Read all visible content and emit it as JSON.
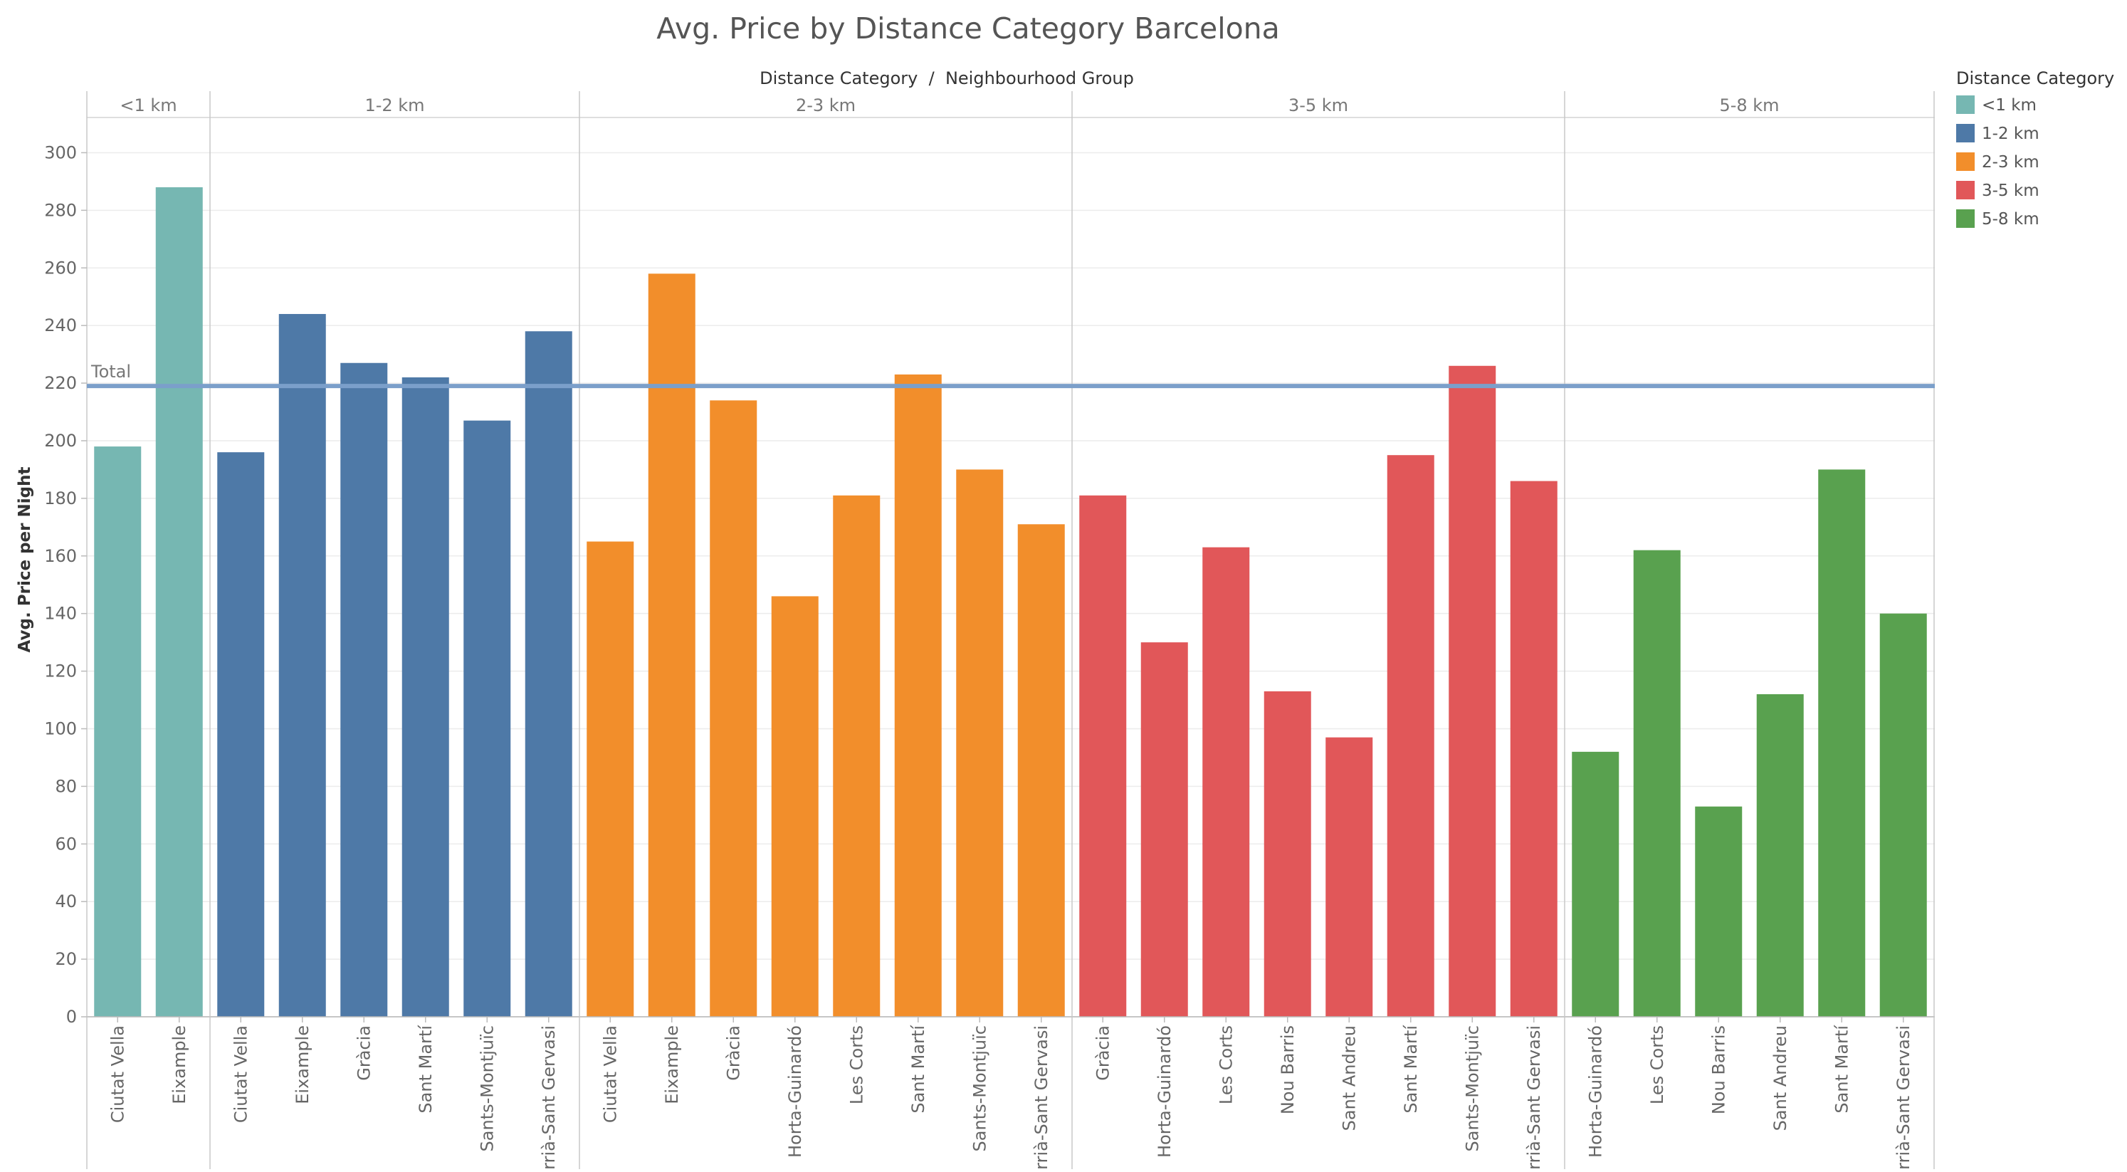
{
  "chart_data": {
    "type": "bar",
    "title": "Avg. Price by Distance Category Barcelona",
    "column_header": "Distance Category  /  Neighbourhood Group",
    "ylabel": "Avg. Price per Night",
    "ylim": [
      0,
      310
    ],
    "yticks": [
      0,
      20,
      40,
      60,
      80,
      100,
      120,
      140,
      160,
      180,
      200,
      220,
      240,
      260,
      280,
      300
    ],
    "grid": true,
    "reference_line": {
      "label": "Total",
      "value": 219,
      "color": "#7b9fca"
    },
    "legend": {
      "title": "Distance Category",
      "position": "right"
    },
    "groups": [
      {
        "name": "<1 km",
        "color": "#76b7b2",
        "categories": [
          "Ciutat Vella",
          "Eixample"
        ],
        "values": [
          198,
          288
        ]
      },
      {
        "name": "1-2 km",
        "color": "#4e79a7",
        "categories": [
          "Ciutat Vella",
          "Eixample",
          "Gràcia",
          "Sant Martí",
          "Sants-Montjuïc",
          "Sarrià-Sant Gervasi"
        ],
        "values": [
          196,
          244,
          227,
          222,
          207,
          238
        ]
      },
      {
        "name": "2-3 km",
        "color": "#f28e2b",
        "categories": [
          "Ciutat Vella",
          "Eixample",
          "Gràcia",
          "Horta-Guinardó",
          "Les Corts",
          "Sant Martí",
          "Sants-Montjuïc",
          "Sarrià-Sant Gervasi"
        ],
        "values": [
          165,
          258,
          214,
          146,
          181,
          223,
          190,
          171
        ]
      },
      {
        "name": "3-5 km",
        "color": "#e15759",
        "categories": [
          "Gràcia",
          "Horta-Guinardó",
          "Les Corts",
          "Nou Barris",
          "Sant Andreu",
          "Sant Martí",
          "Sants-Montjuïc",
          "Sarrià-Sant Gervasi"
        ],
        "values": [
          181,
          130,
          163,
          113,
          97,
          195,
          226,
          186
        ]
      },
      {
        "name": "5-8 km",
        "color": "#59a14f",
        "categories": [
          "Horta-Guinardó",
          "Les Corts",
          "Nou Barris",
          "Sant Andreu",
          "Sant Martí",
          "Sarrià-Sant Gervasi"
        ],
        "values": [
          92,
          162,
          73,
          112,
          190,
          140
        ]
      }
    ]
  }
}
